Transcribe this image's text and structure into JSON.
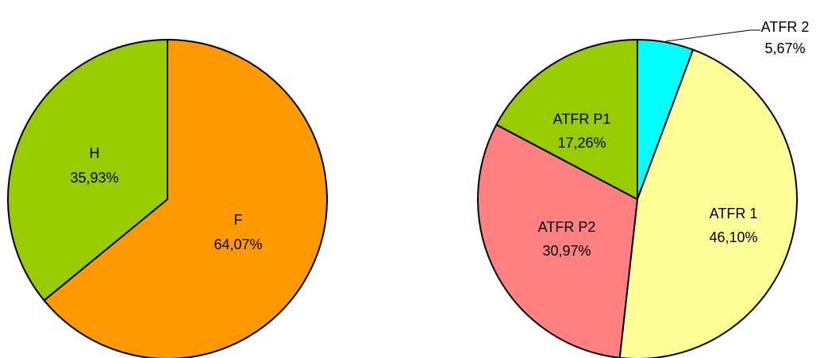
{
  "chart_data": [
    {
      "type": "pie",
      "title": "",
      "slices": [
        {
          "label": "F",
          "value": 64.07,
          "display": "64,07%",
          "color": "#ff9900"
        },
        {
          "label": "H",
          "value": 35.93,
          "display": "35,93%",
          "color": "#99cc00"
        }
      ]
    },
    {
      "type": "pie",
      "title": "",
      "slices": [
        {
          "label": "ATFR 2",
          "value": 5.67,
          "display": "5,67%",
          "color": "#00ffff"
        },
        {
          "label": "ATFR 1",
          "value": 46.1,
          "display": "46,10%",
          "color": "#ffff99"
        },
        {
          "label": "ATFR P2",
          "value": 30.97,
          "display": "30,97%",
          "color": "#ff8080"
        },
        {
          "label": "ATFR P1",
          "value": 17.26,
          "display": "17,26%",
          "color": "#99cc00"
        }
      ]
    }
  ]
}
